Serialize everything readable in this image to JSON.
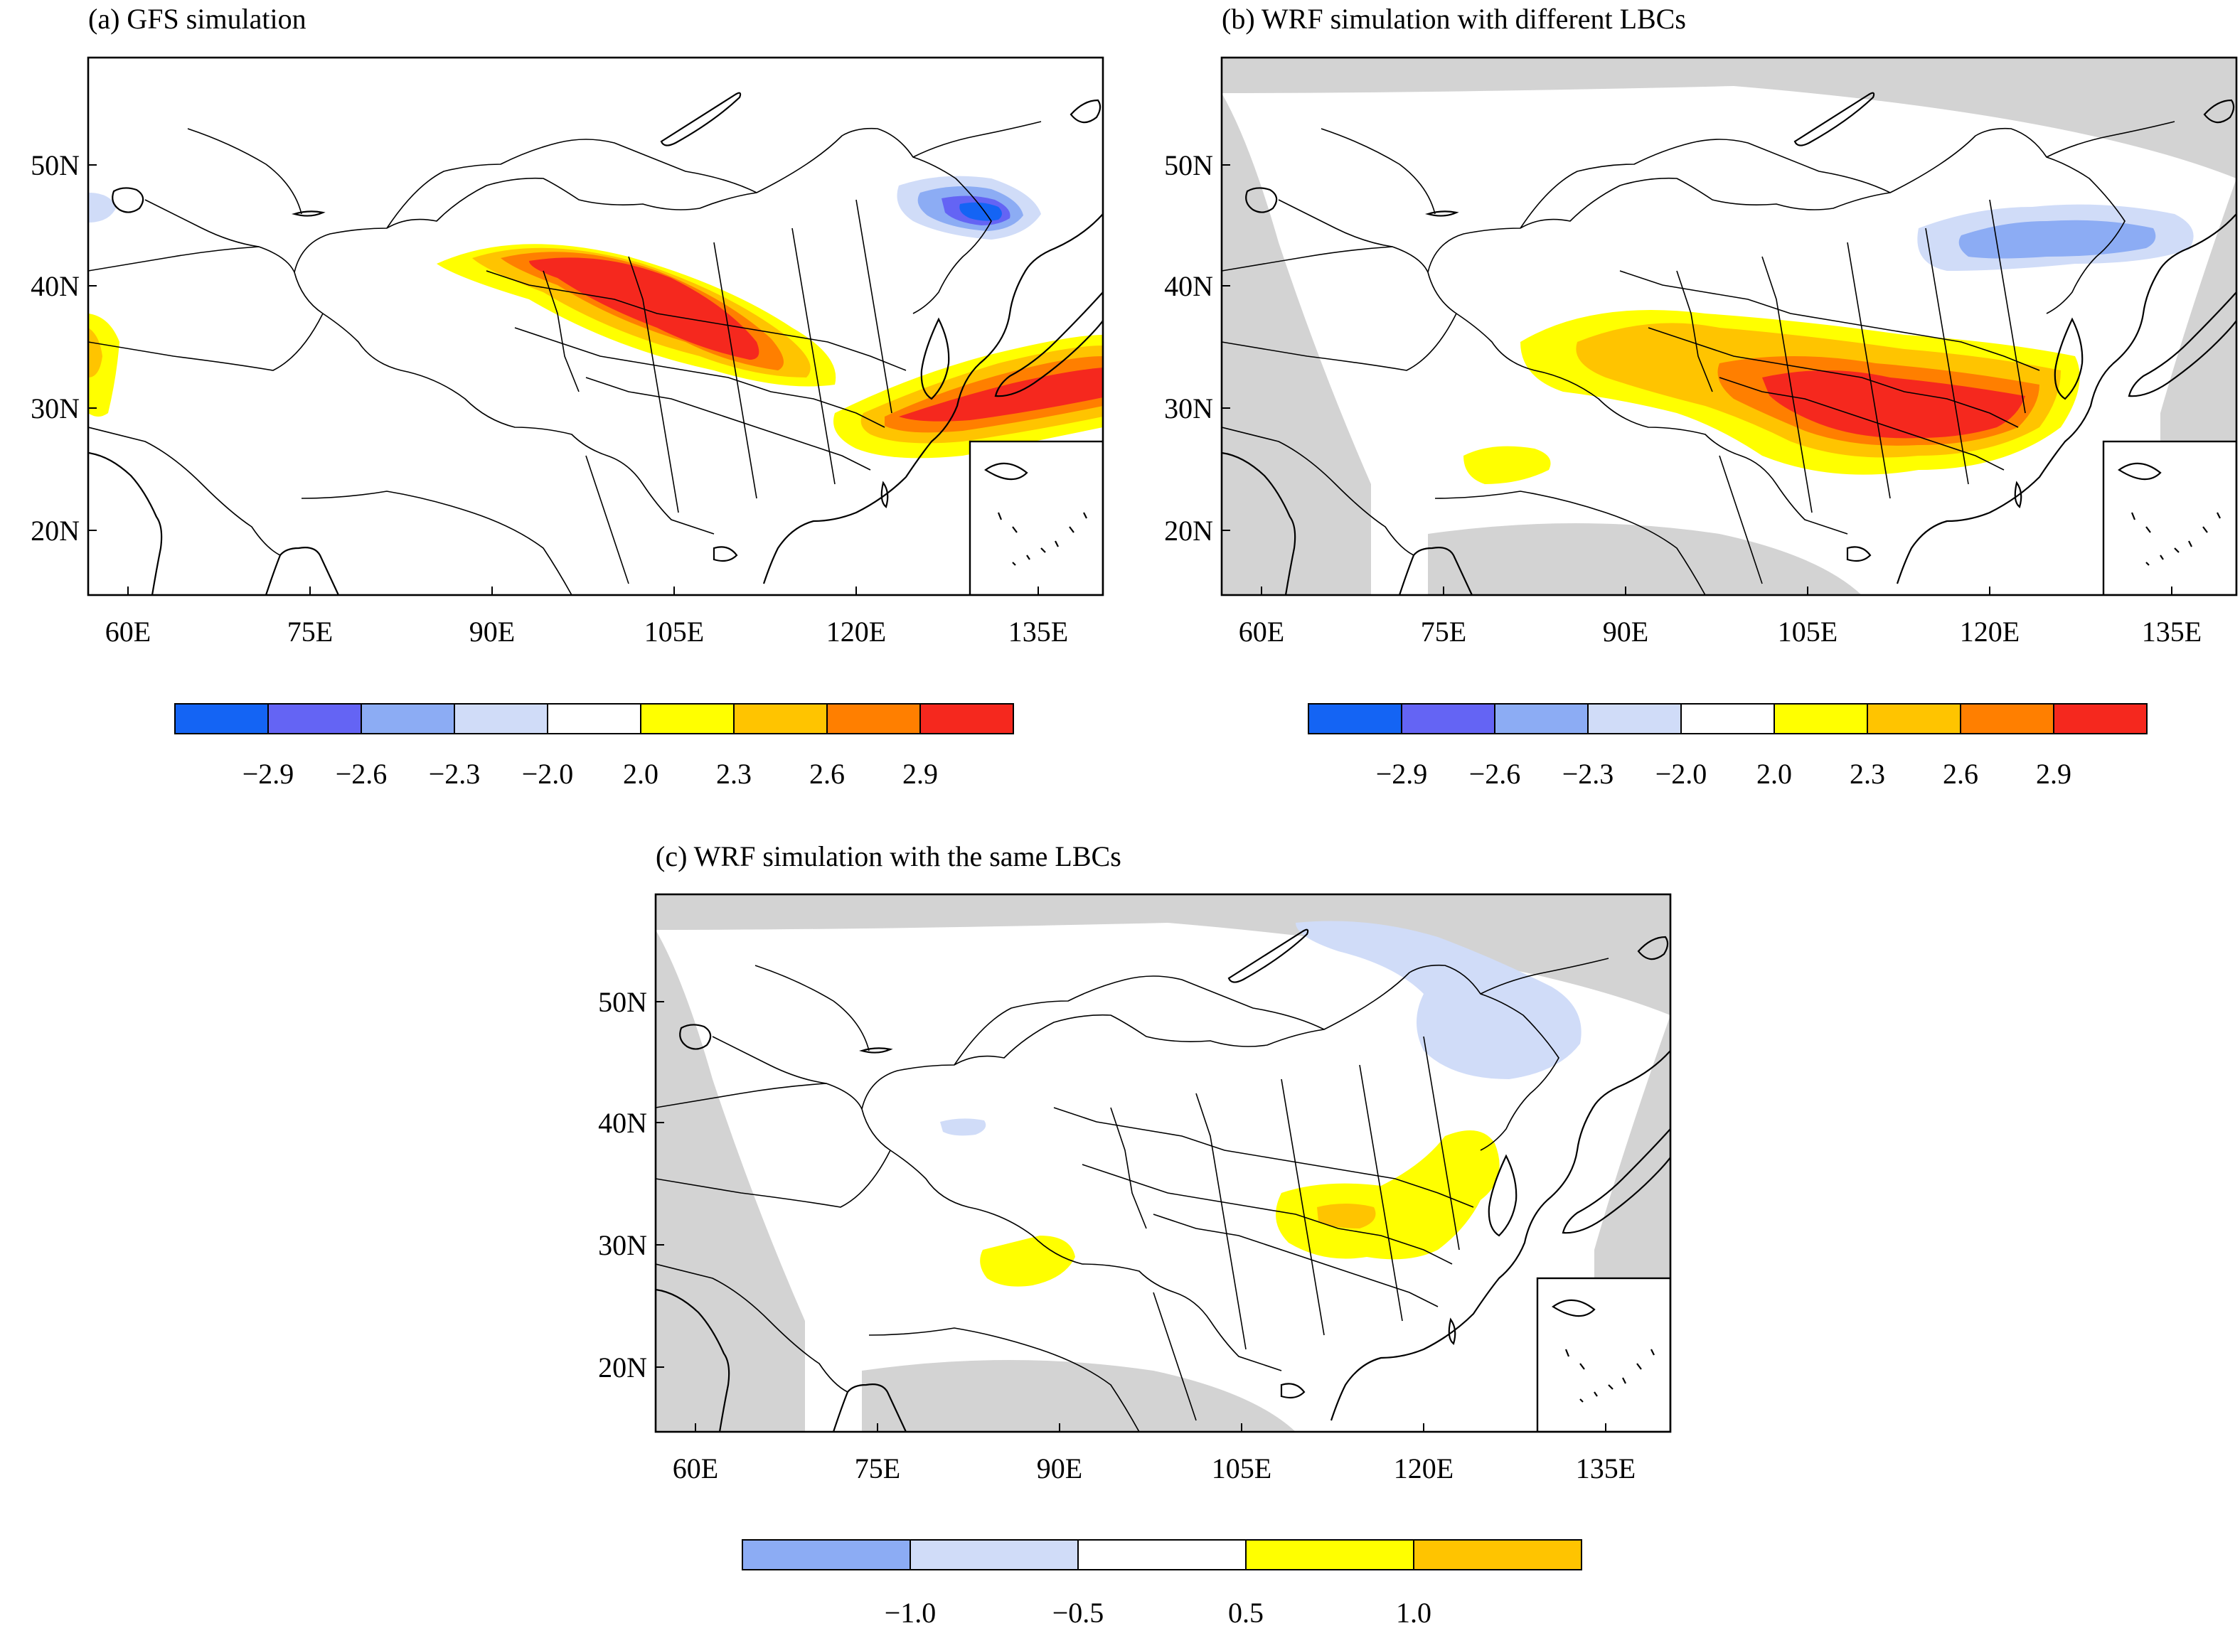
{
  "figure": {
    "panels": [
      {
        "id": "a",
        "title": "(a) GFS simulation",
        "lon_labels": [
          "60E",
          "75E",
          "90E",
          "105E",
          "120E",
          "135E"
        ],
        "lat_labels": [
          "50N",
          "40N",
          "30N",
          "20N"
        ],
        "colorbar": {
          "colors": [
            "#1464f4",
            "#6464f4",
            "#8cacf4",
            "#d0dcf8",
            "#ffffff",
            "#ffff00",
            "#ffc400",
            "#ff7f00",
            "#f5281e"
          ],
          "labels": [
            "−2.9",
            "−2.6",
            "−2.3",
            "−2.0",
            "2.0",
            "2.3",
            "2.6",
            "2.9"
          ]
        }
      },
      {
        "id": "b",
        "title": "(b) WRF simulation with different LBCs",
        "lon_labels": [
          "60E",
          "75E",
          "90E",
          "105E",
          "120E",
          "135E"
        ],
        "lat_labels": [
          "50N",
          "40N",
          "30N",
          "20N"
        ],
        "colorbar": {
          "colors": [
            "#1464f4",
            "#6464f4",
            "#8cacf4",
            "#d0dcf8",
            "#ffffff",
            "#ffff00",
            "#ffc400",
            "#ff7f00",
            "#f5281e"
          ],
          "labels": [
            "−2.9",
            "−2.6",
            "−2.3",
            "−2.0",
            "2.0",
            "2.3",
            "2.6",
            "2.9"
          ]
        }
      },
      {
        "id": "c",
        "title": "(c) WRF simulation with the same LBCs",
        "lon_labels": [
          "60E",
          "75E",
          "90E",
          "105E",
          "120E",
          "135E"
        ],
        "lat_labels": [
          "50N",
          "40N",
          "30N",
          "20N"
        ],
        "colorbar": {
          "colors": [
            "#8cacf4",
            "#d0dcf8",
            "#ffffff",
            "#ffff00",
            "#ffc400"
          ],
          "labels": [
            "−1.0",
            "−0.5",
            "0.5",
            "1.0"
          ]
        }
      }
    ],
    "colors": {
      "outside_domain": "#d3d3d3",
      "land_lines": "#000000"
    }
  }
}
